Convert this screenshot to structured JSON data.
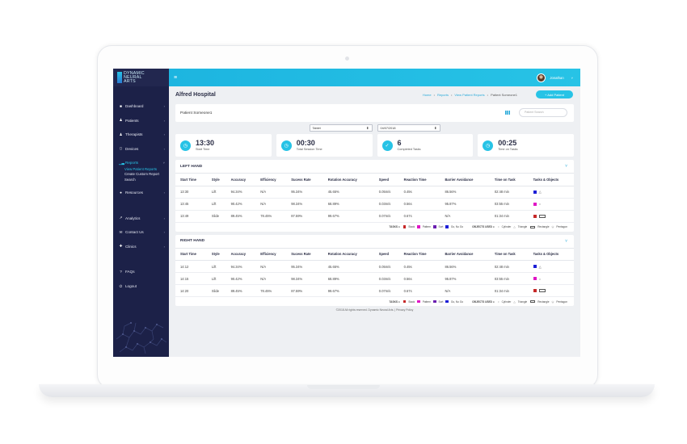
{
  "colors": {
    "accent": "#27c3e6",
    "sidebar": "#1c2148",
    "square_red": "#c62828",
    "square_magenta": "#e016c5",
    "square_purple": "#6a1fb0",
    "square_blue": "#1d1fd6"
  },
  "logo": {
    "line1": "DYNAMIC",
    "line2": "NEURAL",
    "line3": "ARTS"
  },
  "sidebar": {
    "items": [
      {
        "icon": "dashboard-icon",
        "glyph": "■",
        "label": "Dashboard"
      },
      {
        "icon": "patients-icon",
        "glyph": "♟",
        "label": "Patients"
      },
      {
        "icon": "therapists-icon",
        "glyph": "♟",
        "label": "Therapists"
      },
      {
        "icon": "devices-icon",
        "glyph": "▯",
        "label": "Devices"
      },
      {
        "icon": "reports-icon",
        "glyph": "▁▃",
        "label": "Reports"
      },
      {
        "icon": "resources-icon",
        "glyph": "●",
        "label": "Resources"
      },
      {
        "icon": "analytics-icon",
        "glyph": "↗",
        "label": "Analytics"
      },
      {
        "icon": "contact-icon",
        "glyph": "✉",
        "label": "Contact Us"
      },
      {
        "icon": "clinics-icon",
        "glyph": "✚",
        "label": "Clinics"
      },
      {
        "icon": "faq-icon",
        "glyph": "?",
        "label": "FAQs"
      },
      {
        "icon": "logout-icon",
        "glyph": "⏻",
        "label": "Logout"
      }
    ],
    "reports_sub": [
      "View Patient Reports",
      "Create Custom Report",
      "Search"
    ]
  },
  "topbar": {
    "menu_glyph": "≡",
    "user_name": "Jonathan"
  },
  "header": {
    "title": "Alfred Hospital",
    "crumbs": [
      "Home",
      "Reports",
      "View Patient Reports",
      "Patient Someone1"
    ],
    "add_button": "+ Add Patient"
  },
  "patient": {
    "name": "Patient Someone1",
    "search_placeholder": "Patient Search"
  },
  "filters": {
    "device": "Tablet",
    "date": "04/07/2018"
  },
  "stats": [
    {
      "value": "13:30",
      "label": "Start Time"
    },
    {
      "value": "00:30",
      "label": "Total Session Time"
    },
    {
      "value": "6",
      "label": "Completed Tasks"
    },
    {
      "value": "00:25",
      "label": "Time on Tasks"
    }
  ],
  "columns": [
    "Start Time",
    "Style",
    "Accuracy",
    "Efficiency",
    "Sucess Rate",
    "Rotation Accuracy",
    "Speed",
    "Reaction Time",
    "Barrier Avoidance",
    "Time on Task",
    "Tasks & Objects"
  ],
  "left_hand": {
    "title": "LEFT HAND",
    "rows": [
      [
        "13:30",
        "Lift",
        "94.34%",
        "N/A",
        "95.34%",
        "45.65%",
        "0.05m/s",
        "0.49s",
        "86.56%",
        "02:48 min"
      ],
      [
        "13:45",
        "Lift",
        "90.42%",
        "N/A",
        "98.34%",
        "68.89%",
        "0.03m/s",
        "0.56s",
        "95.87%",
        "03:55 min"
      ],
      [
        "13:49",
        "Slide",
        "89.45%",
        "78.45%",
        "87.59%",
        "99.67%",
        "0.07m/s",
        "0.67s",
        "N/A",
        "01:34 min"
      ]
    ]
  },
  "right_hand": {
    "title": "RIGHT HAND",
    "rows": [
      [
        "14:12",
        "Lift",
        "94.34%",
        "N/A",
        "95.34%",
        "45.65%",
        "0.05m/s",
        "0.49s",
        "86.56%",
        "02:48 min"
      ],
      [
        "14:15",
        "Lift",
        "90.42%",
        "N/A",
        "98.34%",
        "68.89%",
        "0.03m/s",
        "0.56s",
        "95.87%",
        "03:55 min"
      ],
      [
        "14:20",
        "Slide",
        "89.45%",
        "78.45%",
        "87.59%",
        "99.67%",
        "0.07m/s",
        "0.67s",
        "N/A",
        "01:34 min"
      ]
    ]
  },
  "legend": {
    "tasks_label": "TASKS =",
    "tasks": [
      "Stack",
      "Pattern",
      "Sort",
      "Go, No Go"
    ],
    "objects_label": "OBJECTS USED =",
    "objects": [
      "Cylinder",
      "Triangle",
      "Rectangle",
      "Pentagon"
    ]
  },
  "footer": "©2018 All rights reserved. Dynamic Neural Arts. | Privacy Policy"
}
